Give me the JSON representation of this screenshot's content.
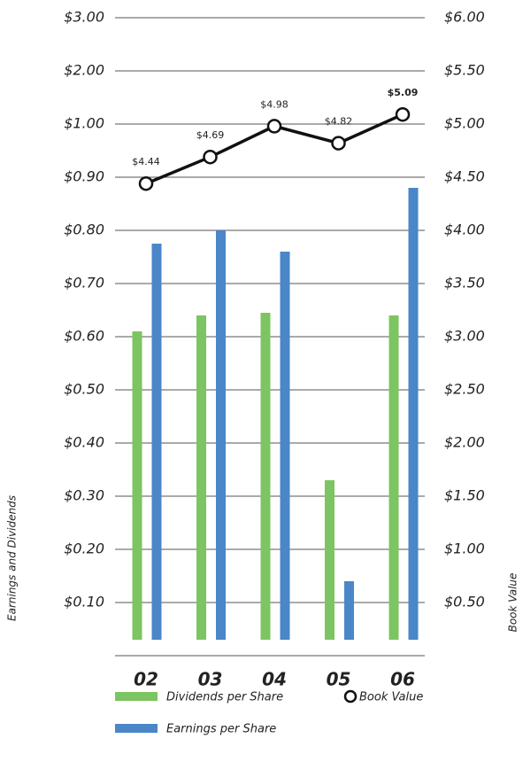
{
  "chart_data": {
    "type": "bar",
    "categories": [
      "02",
      "03",
      "04",
      "05",
      "06"
    ],
    "y_label": "Earnings and Dividends",
    "y2_label": "Book Value",
    "series": [
      {
        "name": "Dividends per Share",
        "color": "#7dc462",
        "values": [
          0.61,
          0.64,
          0.645,
          0.33,
          0.64
        ]
      },
      {
        "name": "Earnings per Share",
        "color": "#4a86c8",
        "values": [
          0.775,
          0.8,
          0.76,
          0.14,
          0.88
        ]
      },
      {
        "name": "Book Value",
        "type": "line",
        "axis": "y2",
        "color": "#111111",
        "values": [
          4.44,
          4.69,
          4.98,
          4.82,
          5.09
        ],
        "value_labels": [
          "$4.44",
          "$4.69",
          "$4.98",
          "$4.82",
          "$5.09"
        ]
      }
    ],
    "ylim": [
      0,
      3
    ],
    "yticks": [
      {
        "value": 0.1,
        "label": "$0.10"
      },
      {
        "value": 0.2,
        "label": "$0.20"
      },
      {
        "value": 0.3,
        "label": "$0.30"
      },
      {
        "value": 0.4,
        "label": "$0.40"
      },
      {
        "value": 0.5,
        "label": "$0.50"
      },
      {
        "value": 0.6,
        "label": "$0.60"
      },
      {
        "value": 0.7,
        "label": "$0.70"
      },
      {
        "value": 0.8,
        "label": "$0.80"
      },
      {
        "value": 0.9,
        "label": "$0.90"
      },
      {
        "value": 1,
        "label": "$1.00"
      },
      {
        "value": 2,
        "label": "$2.00"
      },
      {
        "value": 3,
        "label": "$3.00"
      }
    ],
    "y2lim": [
      0,
      6
    ],
    "y2ticks": [
      {
        "value": 0.5,
        "label": "$0.50"
      },
      {
        "value": 1,
        "label": "$1.00"
      },
      {
        "value": 1.5,
        "label": "$1.50"
      },
      {
        "value": 2,
        "label": "$2.00"
      },
      {
        "value": 2.5,
        "label": "$2.50"
      },
      {
        "value": 3,
        "label": "$3.00"
      },
      {
        "value": 3.5,
        "label": "$3.50"
      },
      {
        "value": 4,
        "label": "$4.00"
      },
      {
        "value": 4.5,
        "label": "$4.50"
      },
      {
        "value": 5,
        "label": "$5.00"
      },
      {
        "value": 5.5,
        "label": "$5.50"
      },
      {
        "value": 6,
        "label": "$6.00"
      }
    ],
    "grid": true
  }
}
